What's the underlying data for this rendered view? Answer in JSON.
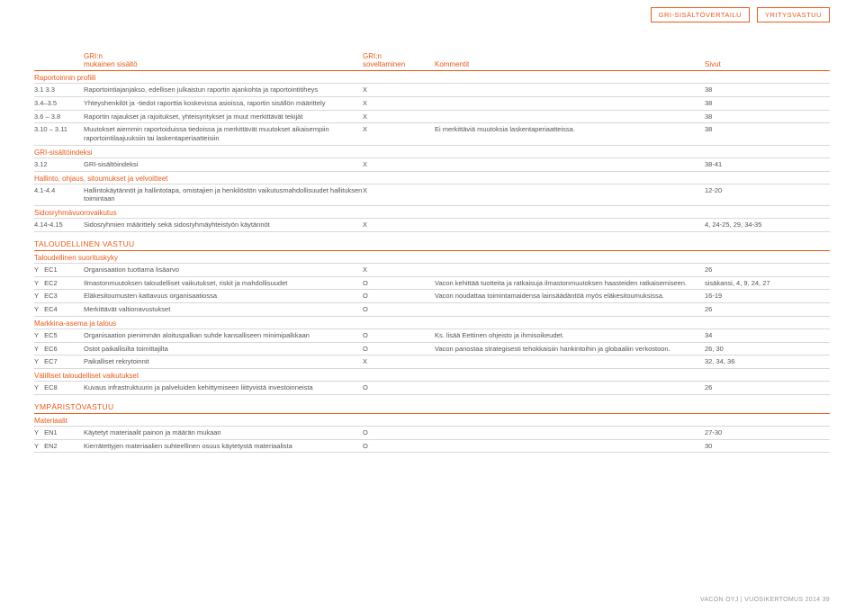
{
  "tags": {
    "a": "GRI-SISÄLTÖVERTAILU",
    "b": "YRITYSVASTUU"
  },
  "head": {
    "c1a": "GRI:n",
    "c1b": "mukainen sisältö",
    "c3a": "GRI:n",
    "c3b": "soveltaminen",
    "c4": "Kommentit",
    "c5": "Sivut"
  },
  "s1": "Raportoinnin profiili",
  "r": {
    "r1": {
      "id": "3.1 3.3",
      "t": "Raportointiajanjakso, edellisen julkaistun raportin ajankohta ja raportointitiheys",
      "ap": "X",
      "cm": "",
      "pg": "38"
    },
    "r2": {
      "id": "3.4–3.5",
      "t": "Yhteyshenkilöt ja -tiedot raporttia koskevissa asioissa, raportin sisällön määrittely",
      "ap": "X",
      "cm": "",
      "pg": "38"
    },
    "r3": {
      "id": "3.6 – 3.8",
      "t": "Raportin rajaukset ja rajoitukset, yhteisyritykset ja muut merkittävät tekijät",
      "ap": "X",
      "cm": "",
      "pg": "38"
    },
    "r4": {
      "id": "3.10 – 3.11",
      "t": "Muutokset aiemmin raportoiduissa tiedoissa ja merkittävät muutokset aikaisempiin raportointilaajuuksiin tai laskentaperiaatteisiin",
      "ap": "X",
      "cm": "Ei merkittäviä muutoksia laskentaperiaatteissa.",
      "pg": "38"
    }
  },
  "s2": "GRI-sisältöindeksi",
  "r5": {
    "id": "3.12",
    "t": "GRI-sisältöindeksi",
    "ap": "X",
    "cm": "",
    "pg": "38-41"
  },
  "s3": "Hallinto, ohjaus, sitoumukset ja velvoitteet",
  "r6": {
    "id": "4.1-4.4",
    "t": "Hallintokäytännöt ja hallintotapa, omistajien ja henkilöstön vaikutusmahdollisuudet hallituksen toimintaan",
    "ap": "X",
    "cm": "",
    "pg": "12-20"
  },
  "s4": "Sidosryhmävuorovaikutus",
  "r7": {
    "id": "4.14-4.15",
    "t": "Sidosryhmien määrittely sekä sidosryhmäyhteistyön käytännöt",
    "ap": "X",
    "cm": "",
    "pg": "4, 24-25, 29, 34-35"
  },
  "big1": "TALOUDELLINEN VASTUU",
  "s5": "Taloudellinen suorituskyky",
  "e1": {
    "id": "Y   EC1",
    "t": "Organisaation tuottama lisäarvo",
    "ap": "X",
    "cm": "",
    "pg": "26"
  },
  "e2": {
    "id": "Y   EC2",
    "t": "Ilmastonmuutoksen taloudelliset vaikutukset, riskit ja mahdollisuudet",
    "ap": "O",
    "cm": "Vacon kehittää tuotteita ja ratkaisuja ilmastonmuutoksen haasteiden ratkaisemiseen.",
    "pg": "sisäkansi, 4, 9, 24, 27"
  },
  "e3": {
    "id": "Y   EC3",
    "t": "Eläkesitoumusten kattavuus organisaatiossa",
    "ap": "O",
    "cm": "Vacon noudattaa toimintamaidensa lainsäädäntöä myös eläkesitoumuksissa.",
    "pg": "16-19"
  },
  "e4": {
    "id": "Y   EC4",
    "t": "Merkittävät valtionavustukset",
    "ap": "O",
    "cm": "",
    "pg": "26"
  },
  "s6": "Markkina-asema ja talous",
  "e5": {
    "id": "Y   EC5",
    "t": "Organisaation pienimmän aloituspalkan suhde kansalliseen minimipalkkaan",
    "ap": "O",
    "cm": "Ks. lisää Eettinen ohjeisto ja ihmisoikeudet.",
    "pg": "34"
  },
  "e6": {
    "id": "Y   EC6",
    "t": "Ostot paikallisilta toimittajilta",
    "ap": "O",
    "cm": "Vacon panostaa strategisesti tehokkaisiin hankintoihin ja globaaliin verkostoon.",
    "pg": "26, 30"
  },
  "e7": {
    "id": "Y   EC7",
    "t": "Paikalliset rekrytoinnit",
    "ap": "X",
    "cm": "",
    "pg": "32, 34, 36"
  },
  "s7": "Välilliset taloudelliset vaikutukset",
  "e8": {
    "id": "Y   EC8",
    "t": "Kuvaus infrastruktuurin ja palveluiden kehittymiseen liittyvistä investoinneista",
    "ap": "O",
    "cm": "",
    "pg": "26"
  },
  "big2": "YMPÄRISTÖVASTUU",
  "s8": "Materiaalit",
  "n1": {
    "id": "Y   EN1",
    "t": "Käytetyt materiaalit painon ja määrän mukaan",
    "ap": "O",
    "cm": "",
    "pg": "27-30"
  },
  "n2": {
    "id": "Y   EN2",
    "t": "Kierrätettyjen materiaalien suhteellinen osuus käytetystä materiaalista",
    "ap": "O",
    "cm": "",
    "pg": "30"
  },
  "footer": "VACON OYJ | VUOSIKERTOMUS 2014     39"
}
